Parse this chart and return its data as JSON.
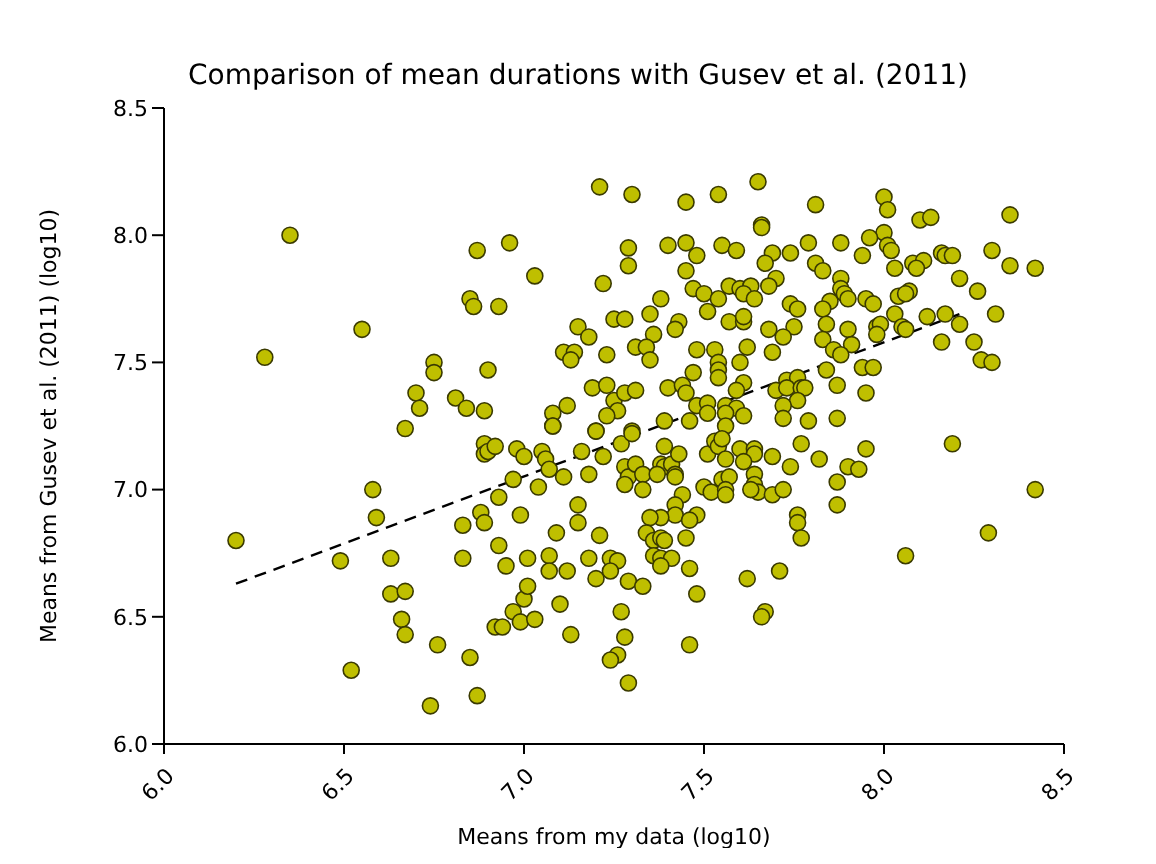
{
  "chart_data": {
    "type": "scatter",
    "title": "Comparison of mean durations with Gusev et al. (2011)",
    "xlabel": "Means from my data (log10)",
    "ylabel": "Means from Gusev et al. (2011) (log10)",
    "xlim": [
      6,
      8.5
    ],
    "ylim": [
      6,
      8.5
    ],
    "xticks": [
      {
        "value": 6,
        "label": "6.0"
      },
      {
        "value": 6.5,
        "label": "6.5"
      },
      {
        "value": 7,
        "label": "7.0"
      },
      {
        "value": 7.5,
        "label": "7.5"
      },
      {
        "value": 8,
        "label": "8.0"
      },
      {
        "value": 8.5,
        "label": "8.5"
      }
    ],
    "yticks": [
      {
        "value": 6,
        "label": "6.0"
      },
      {
        "value": 6.5,
        "label": "6.5"
      },
      {
        "value": 7,
        "label": "7.0"
      },
      {
        "value": 7.5,
        "label": "7.5"
      },
      {
        "value": 8,
        "label": "8.0"
      },
      {
        "value": 8.5,
        "label": "8.5"
      }
    ],
    "marker": "circle",
    "series": [
      {
        "type": "scatter",
        "color": "#bfbf00",
        "x": [
          7.21,
          7.3,
          6.35,
          6.87,
          6.96,
          7.29,
          7.29,
          7.03,
          7.22,
          6.85,
          6.86,
          6.93,
          7.25,
          7.28,
          7.15,
          7.18,
          6.55,
          6.28,
          6.75,
          6.75,
          6.9,
          7.11,
          7.14,
          7.13,
          7.23,
          7.31,
          6.7,
          6.71,
          6.81,
          6.84,
          6.89,
          7.08,
          7.12,
          7.08,
          6.67,
          7.19,
          7.23,
          7.25,
          7.28,
          7.26,
          7.23,
          7.2,
          7.31,
          7.54,
          7.65,
          7.45,
          7.81,
          8.0,
          8.01,
          8.35,
          8.1,
          8.13,
          7.66,
          7.66,
          8.0,
          7.4,
          7.45,
          7.55,
          7.59,
          7.79,
          7.88,
          7.96,
          8.01,
          7.94,
          8.02,
          8.3,
          8.16,
          8.17,
          8.19,
          7.48,
          7.69,
          7.74,
          7.45,
          7.67,
          7.81,
          7.83,
          8.03,
          8.08,
          8.11,
          8.09,
          8.35,
          8.42,
          8.21,
          7.7,
          7.68,
          7.88,
          7.88,
          7.89,
          7.57,
          7.6,
          7.63,
          7.61,
          7.64,
          7.47,
          7.5,
          7.54,
          7.38,
          7.85,
          7.9,
          7.95,
          7.97,
          8.07,
          8.04,
          8.06,
          8.26,
          7.74,
          7.76,
          7.83,
          7.51,
          7.35,
          7.43,
          7.42,
          7.57,
          7.61,
          7.61,
          8.03,
          8.12,
          8.17,
          8.21,
          8.31,
          7.68,
          7.75,
          7.84,
          7.9,
          7.98,
          7.99,
          8.05,
          8.06,
          7.36,
          7.72,
          7.83,
          7.91,
          7.98,
          8.16,
          8.25,
          7.34,
          7.35,
          7.48,
          7.53,
          7.62,
          7.69,
          7.86,
          7.88,
          7.94,
          7.97,
          8.27,
          8.3,
          7.95,
          7.47,
          7.54,
          7.54,
          7.54,
          7.6,
          7.61,
          7.84,
          7.87,
          7.4,
          7.44,
          7.45,
          7.59,
          7.7,
          7.73,
          7.76,
          7.73,
          7.77,
          7.78,
          7.76,
          7.72,
          7.48,
          7.51,
          7.56,
          7.59,
          7.51,
          7.56,
          7.61,
          7.46,
          7.56,
          7.72,
          7.79,
          7.87,
          7.39,
          7.3,
          6.2,
          6.49,
          6.58,
          6.59,
          6.63,
          6.63,
          6.67,
          6.66,
          6.67,
          6.52,
          6.76,
          6.74,
          6.85,
          6.87,
          6.83,
          6.83,
          6.88,
          6.89,
          6.93,
          6.93,
          6.95,
          6.97,
          6.99,
          7.0,
          7.01,
          6.97,
          6.99,
          7.03,
          6.92,
          6.94,
          6.89,
          6.89,
          6.9,
          6.92,
          6.98,
          7.0,
          7.04,
          7.05,
          7.06,
          7.07,
          7.08,
          7.11,
          7.01,
          7.07,
          7.07,
          7.12,
          7.09,
          7.1,
          7.13,
          7.15,
          7.15,
          7.2,
          7.16,
          7.18,
          7.22,
          7.21,
          7.18,
          7.24,
          7.26,
          7.24,
          7.2,
          7.27,
          7.28,
          7.26,
          7.24,
          7.29,
          7.29,
          7.27,
          7.3,
          7.28,
          7.29,
          7.28,
          7.31,
          7.39,
          7.33,
          7.33,
          7.38,
          7.39,
          7.37,
          7.41,
          7.42,
          7.42,
          7.43,
          7.51,
          7.53,
          7.54,
          7.55,
          7.56,
          7.6,
          7.64,
          7.64,
          7.69,
          7.77,
          7.82,
          7.95,
          8.19,
          7.74,
          7.9,
          7.93,
          7.87,
          7.5,
          7.52,
          7.55,
          7.57,
          7.56,
          7.56,
          7.61,
          7.64,
          7.64,
          7.65,
          7.63,
          7.69,
          7.72,
          7.44,
          7.42,
          7.42,
          7.38,
          7.35,
          7.48,
          7.46,
          7.45,
          7.34,
          7.36,
          7.38,
          7.39,
          7.36,
          7.38,
          7.41,
          7.38,
          7.76,
          7.76,
          7.77,
          7.87,
          7.46,
          7.33,
          7.48,
          7.62,
          7.71,
          8.06,
          8.29,
          8.42,
          7.46,
          7.67,
          7.66
        ],
        "values": [
          8.19,
          8.16,
          8.0,
          7.94,
          7.97,
          7.95,
          7.88,
          7.84,
          7.81,
          7.75,
          7.72,
          7.72,
          7.67,
          7.67,
          7.64,
          7.6,
          7.63,
          7.52,
          7.5,
          7.46,
          7.47,
          7.54,
          7.54,
          7.51,
          7.53,
          7.56,
          7.38,
          7.32,
          7.36,
          7.32,
          7.31,
          7.3,
          7.33,
          7.25,
          7.24,
          7.4,
          7.41,
          7.35,
          7.38,
          7.31,
          7.29,
          7.23,
          7.39,
          8.16,
          8.21,
          8.13,
          8.12,
          8.15,
          8.1,
          8.08,
          8.06,
          8.07,
          8.04,
          8.03,
          8.01,
          7.96,
          7.97,
          7.96,
          7.94,
          7.97,
          7.97,
          7.99,
          7.96,
          7.92,
          7.94,
          7.94,
          7.93,
          7.92,
          7.92,
          7.92,
          7.93,
          7.93,
          7.86,
          7.89,
          7.89,
          7.86,
          7.87,
          7.89,
          7.9,
          7.87,
          7.88,
          7.87,
          7.83,
          7.83,
          7.8,
          7.83,
          7.79,
          7.77,
          7.8,
          7.79,
          7.8,
          7.77,
          7.75,
          7.79,
          7.77,
          7.75,
          7.75,
          7.74,
          7.75,
          7.75,
          7.73,
          7.78,
          7.76,
          7.77,
          7.78,
          7.73,
          7.71,
          7.71,
          7.7,
          7.69,
          7.66,
          7.63,
          7.66,
          7.66,
          7.68,
          7.69,
          7.68,
          7.69,
          7.65,
          7.69,
          7.63,
          7.64,
          7.65,
          7.63,
          7.64,
          7.65,
          7.64,
          7.63,
          7.61,
          7.6,
          7.59,
          7.57,
          7.61,
          7.58,
          7.58,
          7.56,
          7.51,
          7.55,
          7.55,
          7.56,
          7.54,
          7.55,
          7.53,
          7.48,
          7.48,
          7.51,
          7.5,
          7.38,
          7.46,
          7.5,
          7.47,
          7.44,
          7.5,
          7.42,
          7.47,
          7.41,
          7.4,
          7.41,
          7.38,
          7.39,
          7.39,
          7.43,
          7.44,
          7.4,
          7.4,
          7.4,
          7.35,
          7.33,
          7.33,
          7.34,
          7.33,
          7.32,
          7.3,
          7.3,
          7.29,
          7.27,
          7.25,
          7.28,
          7.27,
          7.28,
          7.27,
          7.23,
          6.8,
          6.72,
          7.0,
          6.89,
          6.73,
          6.59,
          6.6,
          6.49,
          6.43,
          6.29,
          6.39,
          6.15,
          6.34,
          6.19,
          6.86,
          6.73,
          6.91,
          6.87,
          6.97,
          6.78,
          6.7,
          7.04,
          6.9,
          6.57,
          6.62,
          6.52,
          6.48,
          6.49,
          6.46,
          6.46,
          7.18,
          7.14,
          7.15,
          7.17,
          7.16,
          7.13,
          7.01,
          7.15,
          7.12,
          7.08,
          7.25,
          7.05,
          6.73,
          6.74,
          6.68,
          6.68,
          6.83,
          6.55,
          6.43,
          6.94,
          6.87,
          7.23,
          7.15,
          7.06,
          7.13,
          6.82,
          6.73,
          6.73,
          6.72,
          6.68,
          6.65,
          6.52,
          6.42,
          6.35,
          6.33,
          6.24,
          6.64,
          7.18,
          7.22,
          7.09,
          7.05,
          7.02,
          7.1,
          7.17,
          7.06,
          7.0,
          7.1,
          7.09,
          7.06,
          7.1,
          7.06,
          7.05,
          7.14,
          7.14,
          7.19,
          7.17,
          7.2,
          7.12,
          7.16,
          7.16,
          7.14,
          7.13,
          7.18,
          7.12,
          7.16,
          7.18,
          7.09,
          7.09,
          7.08,
          7.03,
          7.01,
          6.99,
          7.04,
          7.05,
          7.0,
          6.98,
          7.11,
          7.06,
          7.02,
          6.99,
          7.0,
          6.98,
          7.0,
          6.98,
          6.94,
          6.9,
          6.89,
          6.89,
          6.9,
          6.88,
          6.81,
          6.83,
          6.8,
          6.81,
          6.8,
          6.74,
          6.73,
          6.73,
          6.7,
          6.9,
          6.87,
          6.81,
          6.94,
          6.69,
          6.62,
          6.59,
          6.65,
          6.68,
          6.74,
          6.83,
          7.0,
          6.39,
          6.52,
          6.5
        ]
      },
      {
        "type": "line",
        "color": "#000000",
        "line_style": "dashed",
        "marker": "none",
        "x": [
          6.2,
          8.21
        ],
        "values": [
          6.63,
          7.69
        ]
      }
    ]
  }
}
